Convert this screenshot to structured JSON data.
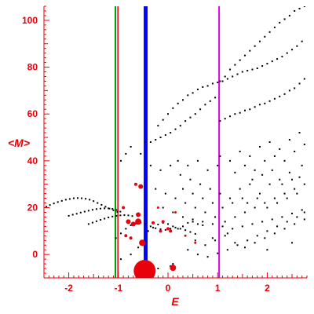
{
  "chart_data": {
    "type": "scatter",
    "xlabel": "E",
    "ylabel": "<M>",
    "xlim": [
      -2.5,
      2.8
    ],
    "ylim": [
      -10,
      106
    ],
    "x_ticks": [
      -2,
      -1,
      0,
      1,
      2
    ],
    "y_ticks": [
      0,
      20,
      40,
      60,
      80,
      100
    ],
    "grid": false,
    "colors": {
      "axis": "#e8000b",
      "points": "#000000",
      "highlight": "#e8000b",
      "line_green": "#00a000",
      "line_red": "#e8000b",
      "line_blue": "#0000ff",
      "line_magenta": "#e000e0"
    },
    "vertical_lines": [
      {
        "x": -1.06,
        "color": "#00a000",
        "width": 2
      },
      {
        "x": -1.01,
        "color": "#e8000b",
        "width": 1.5
      },
      {
        "x": -0.45,
        "color": "#0000ff",
        "width": 5
      },
      {
        "x": 1.03,
        "color": "#e000e0",
        "width": 2
      }
    ],
    "black_points": [
      [
        -2.45,
        20.4
      ],
      [
        -2.38,
        21.1
      ],
      [
        -2.3,
        21.8
      ],
      [
        -2.22,
        22.4
      ],
      [
        -2.14,
        22.9
      ],
      [
        -2.06,
        23.4
      ],
      [
        -1.98,
        23.7
      ],
      [
        -1.9,
        24.0
      ],
      [
        -1.82,
        24.1
      ],
      [
        -1.74,
        24.0
      ],
      [
        -1.66,
        23.8
      ],
      [
        -1.58,
        23.4
      ],
      [
        -1.5,
        22.8
      ],
      [
        -1.42,
        22.0
      ],
      [
        -1.34,
        21.2
      ],
      [
        -1.26,
        20.4
      ],
      [
        -1.18,
        19.6
      ],
      [
        -1.1,
        18.9
      ],
      [
        -1.02,
        18.2
      ],
      [
        -2.0,
        16.5
      ],
      [
        -1.92,
        17.0
      ],
      [
        -1.84,
        17.4
      ],
      [
        -1.76,
        17.9
      ],
      [
        -1.68,
        18.3
      ],
      [
        -1.6,
        18.7
      ],
      [
        -1.52,
        19.1
      ],
      [
        -1.44,
        19.4
      ],
      [
        -1.36,
        19.6
      ],
      [
        -1.28,
        19.7
      ],
      [
        -1.2,
        19.7
      ],
      [
        -1.12,
        19.5
      ],
      [
        -1.04,
        19.0
      ],
      [
        -0.96,
        18.3
      ],
      [
        -1.6,
        13.0
      ],
      [
        -1.52,
        13.6
      ],
      [
        -1.44,
        14.2
      ],
      [
        -1.36,
        14.8
      ],
      [
        -1.28,
        15.3
      ],
      [
        -1.2,
        15.8
      ],
      [
        -1.12,
        16.2
      ],
      [
        -1.04,
        16.5
      ],
      [
        -0.96,
        16.7
      ],
      [
        -0.88,
        16.8
      ],
      [
        -0.8,
        16.7
      ],
      [
        -0.72,
        16.4
      ],
      [
        -1.05,
        7.0
      ],
      [
        -0.95,
        9.0
      ],
      [
        -0.85,
        11.0
      ],
      [
        -0.75,
        12.5
      ],
      [
        -0.65,
        13.2
      ],
      [
        -0.55,
        13.6
      ],
      [
        -0.45,
        13.0
      ],
      [
        -0.35,
        12.0
      ],
      [
        -0.25,
        11.2
      ],
      [
        -0.15,
        10.8
      ],
      [
        -0.05,
        10.5
      ],
      [
        0.05,
        11.0
      ],
      [
        0.15,
        11.5
      ],
      [
        0.25,
        11.0
      ],
      [
        0.35,
        10.4
      ],
      [
        0.45,
        9.6
      ],
      [
        0.55,
        8.8
      ],
      [
        -0.4,
        10.0
      ],
      [
        -0.3,
        11.5
      ],
      [
        -0.2,
        12.8
      ],
      [
        -0.1,
        13.5
      ],
      [
        0.0,
        13.0
      ],
      [
        0.1,
        12.0
      ],
      [
        0.2,
        11.0
      ],
      [
        0.3,
        12.0
      ],
      [
        0.4,
        13.5
      ],
      [
        0.5,
        14.0
      ],
      [
        0.6,
        13.0
      ],
      [
        0.7,
        12.5
      ],
      [
        -0.95,
        40.0
      ],
      [
        -0.85,
        43.0
      ],
      [
        -0.75,
        46.0
      ],
      [
        -0.55,
        43.0
      ],
      [
        -0.45,
        48.0
      ],
      [
        -0.35,
        48.0
      ],
      [
        -0.25,
        49.0
      ],
      [
        -0.15,
        50.0
      ],
      [
        -0.05,
        51.0
      ],
      [
        0.05,
        52.0
      ],
      [
        0.15,
        53.5
      ],
      [
        0.25,
        55.0
      ],
      [
        0.35,
        57.0
      ],
      [
        0.45,
        58.5
      ],
      [
        0.55,
        60.0
      ],
      [
        0.65,
        62.0
      ],
      [
        0.75,
        64.0
      ],
      [
        0.85,
        65.5
      ],
      [
        0.95,
        67.0
      ],
      [
        -0.2,
        55.0
      ],
      [
        -0.1,
        57.5
      ],
      [
        0.0,
        60.0
      ],
      [
        0.1,
        62.5
      ],
      [
        0.2,
        64.5
      ],
      [
        0.3,
        66.0
      ],
      [
        0.4,
        68.0
      ],
      [
        0.5,
        69.0
      ],
      [
        0.6,
        70.5
      ],
      [
        0.7,
        71.5
      ],
      [
        0.8,
        72.0
      ],
      [
        0.9,
        73.0
      ],
      [
        1.0,
        73.5
      ],
      [
        1.1,
        74.0
      ],
      [
        1.2,
        75.0
      ],
      [
        1.3,
        76.0
      ],
      [
        1.4,
        77.0
      ],
      [
        1.5,
        78.0
      ],
      [
        1.6,
        78.5
      ],
      [
        1.7,
        79.0
      ],
      [
        1.8,
        79.5
      ],
      [
        1.9,
        80.5
      ],
      [
        2.0,
        81.5
      ],
      [
        2.1,
        82.5
      ],
      [
        2.2,
        83.5
      ],
      [
        2.3,
        84.5
      ],
      [
        2.4,
        86.0
      ],
      [
        2.5,
        87.5
      ],
      [
        2.6,
        89.0
      ],
      [
        2.7,
        91.0
      ],
      [
        1.05,
        74.0
      ],
      [
        1.15,
        76.0
      ],
      [
        1.25,
        79.0
      ],
      [
        1.35,
        81.0
      ],
      [
        1.45,
        83.0
      ],
      [
        1.55,
        85.0
      ],
      [
        1.65,
        87.0
      ],
      [
        1.75,
        89.0
      ],
      [
        1.85,
        91.0
      ],
      [
        1.95,
        93.0
      ],
      [
        2.05,
        95.0
      ],
      [
        2.15,
        97.0
      ],
      [
        2.25,
        99.0
      ],
      [
        2.35,
        100.5
      ],
      [
        2.45,
        102.0
      ],
      [
        2.55,
        104.0
      ],
      [
        2.65,
        105.0
      ],
      [
        2.75,
        106.0
      ],
      [
        1.05,
        57.0
      ],
      [
        1.15,
        58.0
      ],
      [
        1.25,
        59.0
      ],
      [
        1.35,
        60.0
      ],
      [
        1.45,
        60.5
      ],
      [
        1.55,
        61.5
      ],
      [
        1.65,
        62.0
      ],
      [
        1.75,
        63.0
      ],
      [
        1.85,
        64.0
      ],
      [
        1.95,
        64.5
      ],
      [
        2.05,
        65.5
      ],
      [
        2.15,
        66.5
      ],
      [
        2.25,
        67.5
      ],
      [
        2.35,
        68.5
      ],
      [
        2.45,
        70.0
      ],
      [
        2.55,
        71.0
      ],
      [
        2.65,
        73.0
      ],
      [
        2.75,
        75.0
      ],
      [
        1.05,
        42.0
      ],
      [
        1.25,
        40.0
      ],
      [
        1.45,
        44.0
      ],
      [
        1.65,
        42.0
      ],
      [
        1.85,
        46.0
      ],
      [
        2.05,
        48.0
      ],
      [
        2.25,
        45.0
      ],
      [
        2.45,
        49.0
      ],
      [
        2.65,
        52.0
      ],
      [
        1.35,
        35.0
      ],
      [
        1.55,
        38.0
      ],
      [
        1.75,
        36.0
      ],
      [
        1.95,
        40.0
      ],
      [
        2.15,
        42.0
      ],
      [
        2.35,
        40.0
      ],
      [
        2.55,
        44.0
      ],
      [
        2.75,
        47.0
      ],
      [
        -0.35,
        38.0
      ],
      [
        -0.15,
        36.0
      ],
      [
        0.05,
        38.0
      ],
      [
        0.25,
        34.0
      ],
      [
        0.45,
        32.0
      ],
      [
        0.65,
        30.0
      ],
      [
        0.85,
        28.0
      ],
      [
        1.05,
        26.0
      ],
      [
        1.25,
        24.0
      ],
      [
        1.45,
        28.0
      ],
      [
        1.65,
        30.0
      ],
      [
        1.85,
        26.0
      ],
      [
        2.05,
        30.0
      ],
      [
        2.25,
        32.0
      ],
      [
        2.45,
        35.0
      ],
      [
        2.65,
        33.0
      ],
      [
        -0.25,
        28.0
      ],
      [
        -0.05,
        26.0
      ],
      [
        0.15,
        24.0
      ],
      [
        0.35,
        22.0
      ],
      [
        0.55,
        20.0
      ],
      [
        0.75,
        18.0
      ],
      [
        0.95,
        16.0
      ],
      [
        1.15,
        14.0
      ],
      [
        1.35,
        16.0
      ],
      [
        1.55,
        18.0
      ],
      [
        1.75,
        20.0
      ],
      [
        1.95,
        22.0
      ],
      [
        2.15,
        24.0
      ],
      [
        2.35,
        26.0
      ],
      [
        2.55,
        28.0
      ],
      [
        2.75,
        30.0
      ],
      [
        -0.1,
        20.0
      ],
      [
        0.1,
        18.0
      ],
      [
        0.3,
        16.0
      ],
      [
        0.5,
        15.0
      ],
      [
        0.7,
        14.0
      ],
      [
        0.9,
        13.0
      ],
      [
        1.1,
        12.0
      ],
      [
        1.3,
        11.0
      ],
      [
        1.5,
        12.0
      ],
      [
        1.7,
        13.0
      ],
      [
        1.9,
        14.0
      ],
      [
        2.1,
        15.0
      ],
      [
        2.3,
        16.0
      ],
      [
        2.5,
        17.5
      ],
      [
        2.7,
        19.0
      ],
      [
        0.4,
        2.0
      ],
      [
        0.6,
        0.0
      ],
      [
        0.8,
        -1.0
      ],
      [
        1.0,
        0.5
      ],
      [
        1.2,
        2.0
      ],
      [
        1.4,
        4.0
      ],
      [
        1.6,
        6.0
      ],
      [
        1.8,
        8.0
      ],
      [
        2.0,
        10.0
      ],
      [
        2.2,
        12.0
      ],
      [
        2.4,
        14.0
      ],
      [
        2.6,
        16.0
      ],
      [
        2.75,
        18.0
      ],
      [
        0.55,
        6.0
      ],
      [
        0.75,
        4.0
      ],
      [
        0.95,
        6.0
      ],
      [
        1.15,
        8.0
      ],
      [
        1.35,
        5.0
      ],
      [
        1.55,
        3.0
      ],
      [
        1.75,
        5.0
      ],
      [
        1.95,
        7.0
      ],
      [
        2.15,
        9.0
      ],
      [
        2.35,
        11.0
      ],
      [
        2.55,
        13.0
      ],
      [
        2.75,
        15.0
      ],
      [
        1.6,
        22.0
      ],
      [
        1.8,
        24.0
      ],
      [
        2.0,
        20.0
      ],
      [
        2.2,
        22.0
      ],
      [
        2.4,
        24.0
      ],
      [
        2.6,
        26.0
      ],
      [
        1.7,
        32.0
      ],
      [
        1.9,
        34.0
      ],
      [
        2.1,
        36.0
      ],
      [
        2.3,
        30.0
      ],
      [
        2.5,
        32.0
      ],
      [
        2.7,
        38.0
      ],
      [
        0.2,
        40.0
      ],
      [
        0.4,
        38.0
      ],
      [
        0.6,
        40.0
      ],
      [
        0.8,
        36.0
      ],
      [
        1.0,
        38.0
      ],
      [
        0.3,
        28.0
      ],
      [
        0.5,
        26.0
      ],
      [
        0.7,
        24.0
      ],
      [
        0.9,
        22.0
      ],
      [
        1.1,
        20.0
      ],
      [
        1.3,
        22.0
      ],
      [
        1.5,
        24.0
      ],
      [
        -0.95,
        -2.0
      ],
      [
        -0.75,
        0.0
      ],
      [
        -0.6,
        3.0
      ],
      [
        0.05,
        -5.0
      ],
      [
        0.1,
        -4.0
      ],
      [
        -0.2,
        -6.0
      ],
      [
        0.9,
        7.0
      ],
      [
        1.2,
        9.0
      ],
      [
        2.0,
        2.0
      ],
      [
        2.5,
        5.0
      ]
    ],
    "red_points": [
      {
        "x": -0.47,
        "y": -7.0,
        "r": 14
      },
      {
        "x": 0.1,
        "y": -5.7,
        "r": 4
      },
      {
        "x": -0.52,
        "y": 5.0,
        "r": 4
      },
      {
        "x": -0.6,
        "y": 14.0,
        "r": 4
      },
      {
        "x": -0.7,
        "y": 13.0,
        "r": 3
      },
      {
        "x": -0.8,
        "y": 14.0,
        "r": 3
      },
      {
        "x": -0.6,
        "y": 17.0,
        "r": 3
      },
      {
        "x": -0.55,
        "y": 29.0,
        "r": 3
      },
      {
        "x": -0.65,
        "y": 30.0,
        "r": 2
      },
      {
        "x": -0.9,
        "y": 20.0,
        "r": 2
      },
      {
        "x": -0.3,
        "y": 13.5,
        "r": 2
      },
      {
        "x": -0.1,
        "y": 14.0,
        "r": 2
      },
      {
        "x": 0.0,
        "y": 11.0,
        "r": 2
      },
      {
        "x": 0.05,
        "y": 10.0,
        "r": 2
      },
      {
        "x": -0.15,
        "y": 10.0,
        "r": 2
      },
      {
        "x": -0.85,
        "y": 8.0,
        "r": 2
      },
      {
        "x": -0.75,
        "y": 7.0,
        "r": 2
      },
      {
        "x": -0.2,
        "y": 20.0,
        "r": 1.5
      },
      {
        "x": 0.15,
        "y": 18.0,
        "r": 1.5
      },
      {
        "x": 0.35,
        "y": 8.0,
        "r": 1.5
      },
      {
        "x": 0.55,
        "y": 5.0,
        "r": 1.5
      }
    ]
  }
}
